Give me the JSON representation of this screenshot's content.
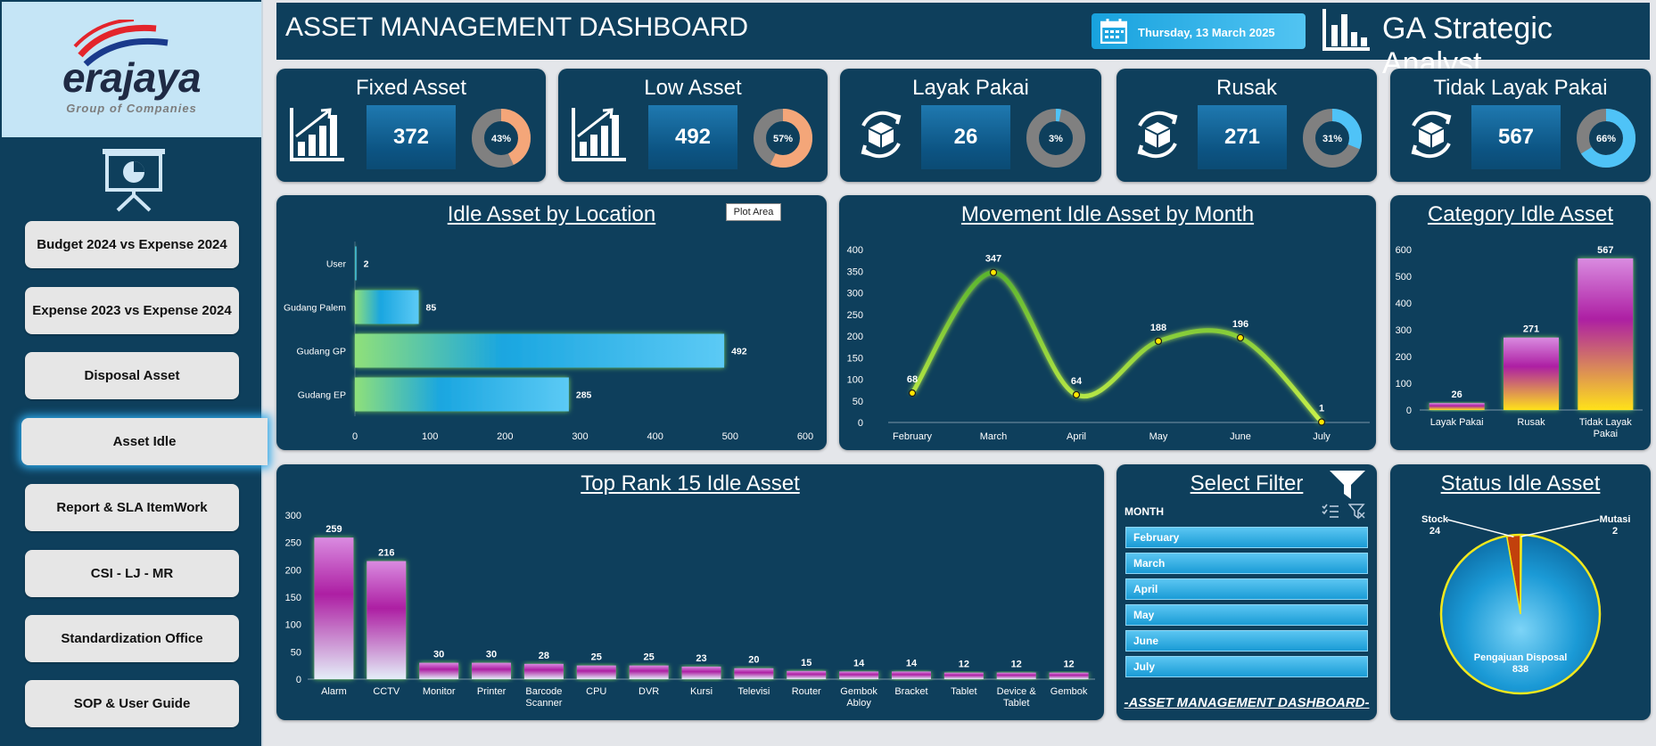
{
  "sidebar": {
    "logo": {
      "brand": "erajaya",
      "tagline": "Group of Companies"
    },
    "presentation_icon": "presentation-chart-icon",
    "items": [
      {
        "label": "Budget 2024 vs Expense 2024"
      },
      {
        "label": "Expense 2023 vs Expense 2024"
      },
      {
        "label": "Disposal Asset"
      },
      {
        "label": "Asset Idle",
        "active": true
      },
      {
        "label": "Report & SLA ItemWork"
      },
      {
        "label": "CSI - LJ - MR"
      },
      {
        "label": "Standardization Office"
      },
      {
        "label": "SOP & User Guide"
      }
    ]
  },
  "header": {
    "title": "ASSET MANAGEMENT DASHBOARD",
    "date": "Thursday, 13 March 2025",
    "analyst": "GA Strategic Analyst",
    "calendar_icon": "calendar-icon",
    "bar_chart_icon": "bar-chart-icon"
  },
  "kpis": [
    {
      "title": "Fixed Asset",
      "value": "372",
      "percent_label": "43%",
      "percent": 0.43,
      "icon": "growth-chart-icon",
      "fill_color": "#f4a679"
    },
    {
      "title": "Low Asset",
      "value": "492",
      "percent_label": "57%",
      "percent": 0.57,
      "icon": "growth-chart-icon",
      "fill_color": "#f4a679"
    },
    {
      "title": "Layak Pakai",
      "value": "26",
      "percent_label": "3%",
      "percent": 0.03,
      "icon": "box-cycle-icon",
      "fill_color": "#4fc3f7"
    },
    {
      "title": "Rusak",
      "value": "271",
      "percent_label": "31%",
      "percent": 0.31,
      "icon": "box-cycle-icon",
      "fill_color": "#4fc3f7"
    },
    {
      "title": "Tidak Layak Pakai",
      "value": "567",
      "percent_label": "66%",
      "percent": 0.66,
      "icon": "box-cycle-icon",
      "fill_color": "#4fc3f7"
    }
  ],
  "plot_area_tooltip": "Plot Area",
  "filter": {
    "title": "Select Filter",
    "field": "MONTH",
    "options": [
      "February",
      "March",
      "April",
      "May",
      "June",
      "July"
    ],
    "footer": "-ASSET MANAGEMENT DASHBOARD-",
    "funnel_icon": "funnel-icon",
    "multiselect_icon": "multi-select-icon",
    "clear_filter_icon": "clear-filter-icon"
  },
  "chart_data": [
    {
      "id": "location",
      "type": "bar",
      "orientation": "horizontal",
      "title": "Idle Asset by Location",
      "categories": [
        "User",
        "Gudang Palem",
        "Gudang GP",
        "Gudang EP"
      ],
      "values": [
        2,
        85,
        492,
        285
      ],
      "xlim": [
        0,
        600
      ],
      "xticks": [
        0,
        100,
        200,
        300,
        400,
        500,
        600
      ]
    },
    {
      "id": "movement",
      "type": "line",
      "title": "Movement Idle Asset by Month",
      "categories": [
        "February",
        "March",
        "April",
        "May",
        "June",
        "July"
      ],
      "values": [
        68,
        347,
        64,
        188,
        196,
        1
      ],
      "ylim": [
        0,
        400
      ],
      "yticks": [
        0,
        50,
        100,
        150,
        200,
        250,
        300,
        350,
        400
      ]
    },
    {
      "id": "category",
      "type": "bar",
      "title": "Category Idle Asset",
      "categories": [
        [
          "Layak Pakai"
        ],
        [
          "Rusak"
        ],
        [
          "Tidak Layak",
          "Pakai"
        ]
      ],
      "values": [
        26,
        271,
        567
      ],
      "ylim": [
        0,
        600
      ],
      "yticks": [
        0,
        100,
        200,
        300,
        400,
        500,
        600
      ]
    },
    {
      "id": "toprank",
      "type": "bar",
      "title": "Top Rank 15 Idle Asset",
      "categories": [
        [
          "Alarm"
        ],
        [
          "CCTV"
        ],
        [
          "Monitor"
        ],
        [
          "Printer"
        ],
        [
          "Barcode",
          "Scanner"
        ],
        [
          "CPU"
        ],
        [
          "DVR"
        ],
        [
          "Kursi"
        ],
        [
          "Televisi"
        ],
        [
          "Router"
        ],
        [
          "Gembok",
          "Abloy"
        ],
        [
          "Bracket"
        ],
        [
          "Tablet"
        ],
        [
          "Device &",
          "Tablet"
        ],
        [
          "Gembok"
        ]
      ],
      "values": [
        259,
        216,
        30,
        30,
        28,
        25,
        25,
        23,
        20,
        15,
        14,
        14,
        12,
        12,
        12
      ],
      "ylim": [
        0,
        300
      ],
      "yticks": [
        0,
        50,
        100,
        150,
        200,
        250,
        300
      ]
    },
    {
      "id": "status",
      "type": "pie",
      "title": "Status Idle Asset",
      "slices": [
        {
          "label": "Pengajuan Disposal",
          "value": 838
        },
        {
          "label": "Stock",
          "value": 24
        },
        {
          "label": "Mutasi",
          "value": 2
        }
      ]
    }
  ]
}
